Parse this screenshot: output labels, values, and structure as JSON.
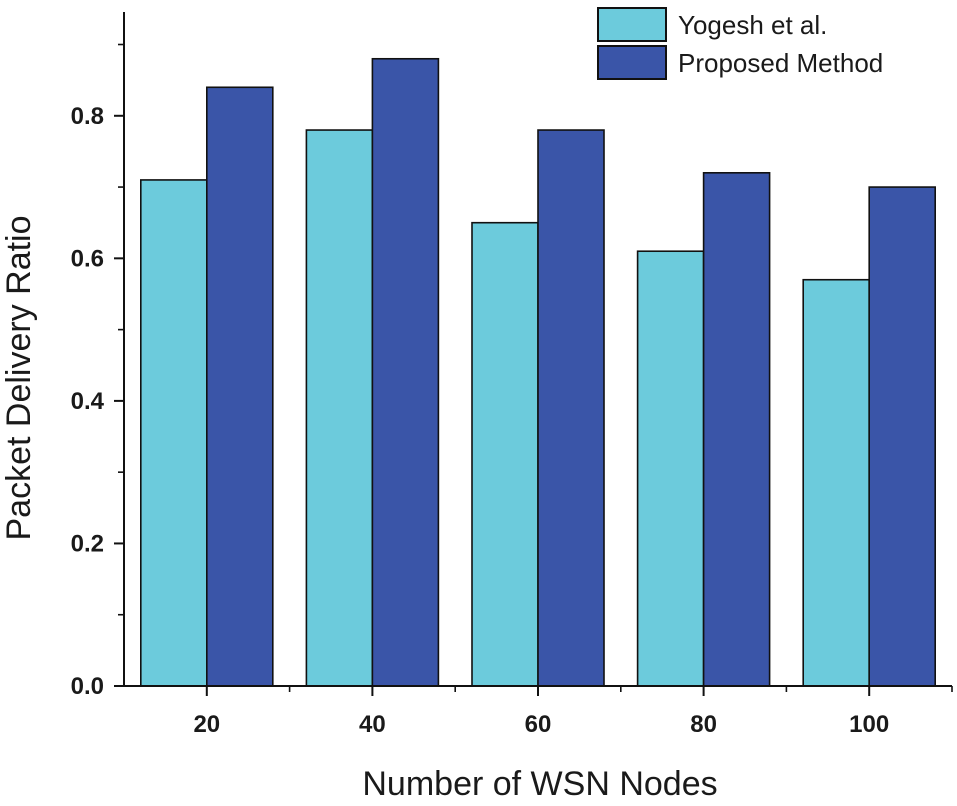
{
  "chart_data": {
    "type": "bar",
    "title": "",
    "xlabel": "Number of WSN Nodes",
    "ylabel": "Packet Delivery Ratio",
    "categories": [
      "20",
      "40",
      "60",
      "80",
      "100"
    ],
    "series": [
      {
        "name": "Yogesh et al.",
        "color": "#6ccbdc",
        "values": [
          0.71,
          0.78,
          0.65,
          0.61,
          0.57
        ]
      },
      {
        "name": "Proposed Method",
        "color": "#3a55a8",
        "values": [
          0.84,
          0.88,
          0.78,
          0.72,
          0.7
        ]
      }
    ],
    "ylim": [
      0,
      0.94
    ],
    "yticks": [
      0.0,
      0.2,
      0.4,
      0.6,
      0.8
    ],
    "ytick_labels": [
      "0.0",
      "0.2",
      "0.4",
      "0.6",
      "0.8"
    ],
    "grid": false,
    "legend": "top-right"
  }
}
